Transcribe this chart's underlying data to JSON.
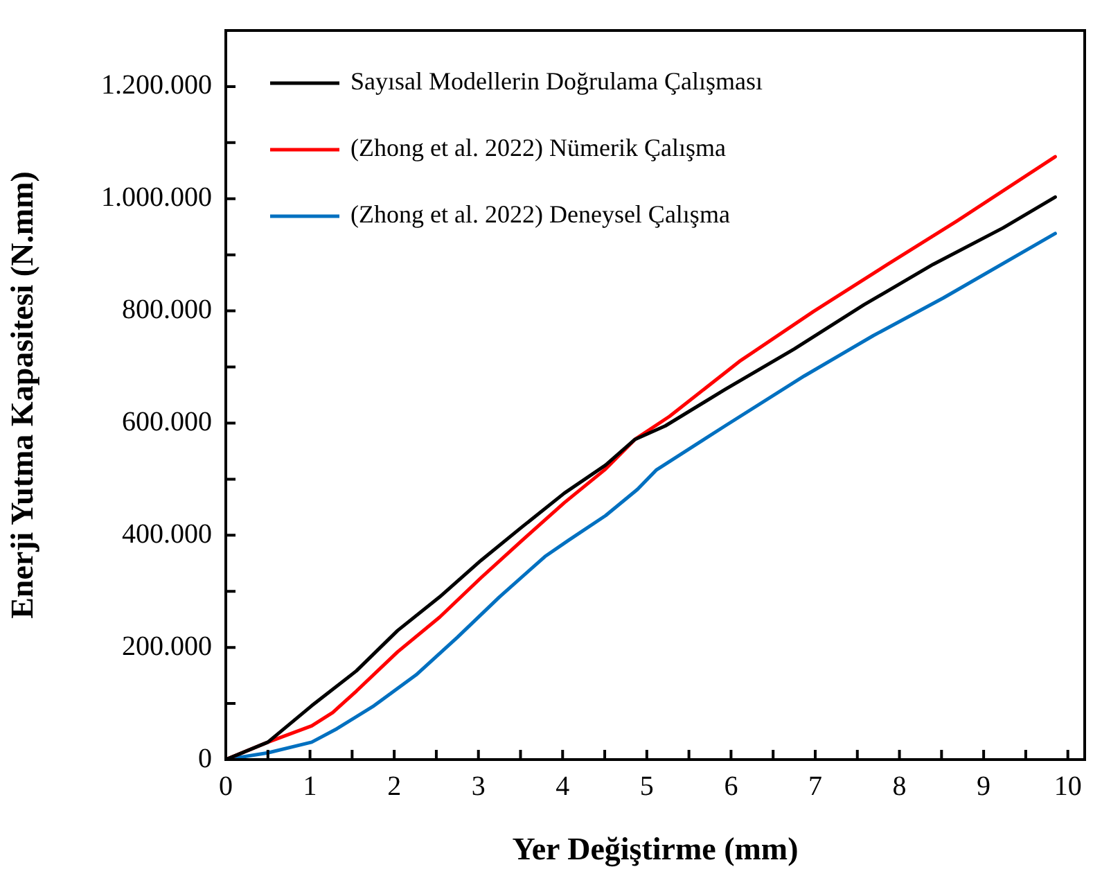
{
  "chart_data": {
    "type": "line",
    "xlabel": "Yer Değiştirme (mm)",
    "ylabel": "Enerji Yutma Kapasitesi (N.mm)",
    "xlim": [
      0,
      10.2
    ],
    "ylim": [
      0,
      1300000
    ],
    "xticks": [
      0,
      {
        "value": 0.5,
        "label": null
      },
      1,
      {
        "value": 1.5,
        "label": null
      },
      2,
      {
        "value": 2.5,
        "label": null
      },
      3,
      {
        "value": 3.5,
        "label": null
      },
      4,
      {
        "value": 4.5,
        "label": null
      },
      5,
      {
        "value": 5.5,
        "label": null
      },
      6,
      {
        "value": 6.5,
        "label": null
      },
      7,
      {
        "value": 7.5,
        "label": null
      },
      8,
      {
        "value": 8.5,
        "label": null
      },
      9,
      {
        "value": 9.5,
        "label": null
      },
      10
    ],
    "yticks": [
      {
        "value": 0,
        "label": "0"
      },
      {
        "value": 100000,
        "label": null
      },
      {
        "value": 200000,
        "label": "200.000"
      },
      {
        "value": 300000,
        "label": null
      },
      {
        "value": 400000,
        "label": "400.000"
      },
      {
        "value": 500000,
        "label": null
      },
      {
        "value": 600000,
        "label": "600.000"
      },
      {
        "value": 700000,
        "label": null
      },
      {
        "value": 800000,
        "label": "800.000"
      },
      {
        "value": 900000,
        "label": null
      },
      {
        "value": 1000000,
        "label": "1.000.000"
      },
      {
        "value": 1100000,
        "label": null
      },
      {
        "value": 1200000,
        "label": "1.200.000"
      }
    ],
    "grid": false,
    "legend": "top left",
    "marker": "none",
    "line_style": "solid",
    "series": [
      {
        "name": "Sayısal Modellerin Doğrulama Çalışması",
        "color": "#000000",
        "x": [
          0,
          0.5,
          1.02,
          1.55,
          2.04,
          2.54,
          3.03,
          3.52,
          4.02,
          4.51,
          4.86,
          5.22,
          5.93,
          6.75,
          7.58,
          8.4,
          9.23,
          9.85
        ],
        "values": [
          0,
          31000,
          96000,
          158000,
          230000,
          290000,
          355000,
          415000,
          475000,
          525000,
          571000,
          595000,
          660000,
          732000,
          811000,
          883000,
          948000,
          1003000
        ]
      },
      {
        "name": "(Zhong et al. 2022) Nümerik Çalışma",
        "color": "#ff0000",
        "x": [
          0,
          0.5,
          1.02,
          1.27,
          1.55,
          2.04,
          2.54,
          3.03,
          3.52,
          4.02,
          4.51,
          4.86,
          5.27,
          6.1,
          6.98,
          7.86,
          8.68,
          9.85
        ],
        "values": [
          0,
          31000,
          60000,
          84000,
          122000,
          192000,
          254000,
          324000,
          391000,
          458000,
          518000,
          571000,
          612000,
          710000,
          799000,
          883000,
          960000,
          1075000
        ]
      },
      {
        "name": "(Zhong et al. 2022) Deneysel Çalışma",
        "color": "#0070c0",
        "x": [
          0,
          0.5,
          1.02,
          1.32,
          1.76,
          2.26,
          2.75,
          3.25,
          3.79,
          4.07,
          4.51,
          4.89,
          5.11,
          5.93,
          6.87,
          7.69,
          8.52,
          9.85
        ],
        "values": [
          0,
          12000,
          31000,
          55000,
          96000,
          151000,
          218000,
          290000,
          362000,
          391000,
          435000,
          482000,
          516000,
          595000,
          684000,
          756000,
          823000,
          938000
        ]
      }
    ]
  }
}
